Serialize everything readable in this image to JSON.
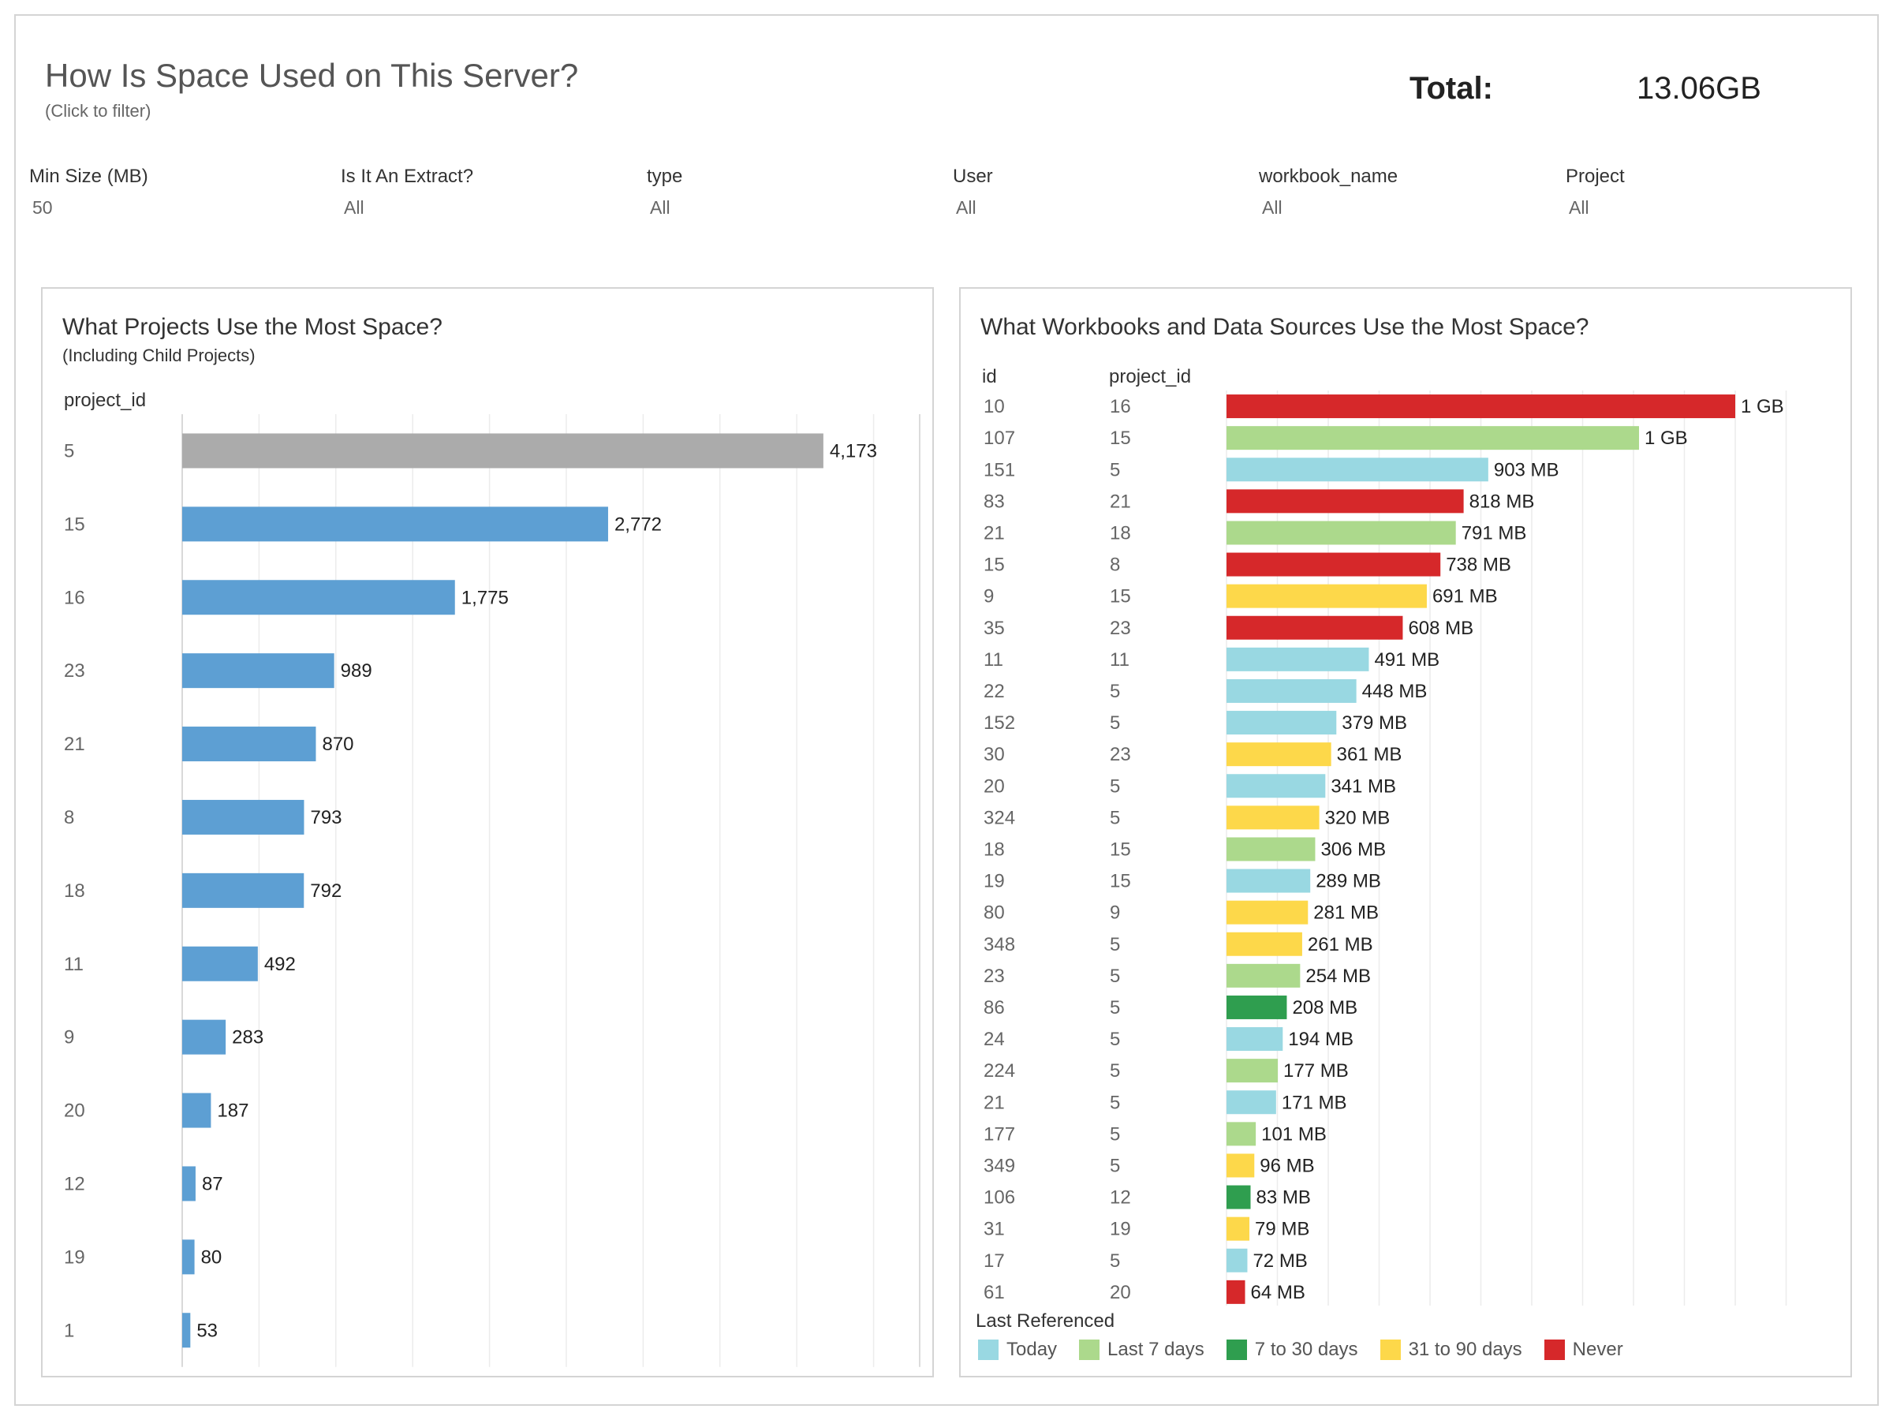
{
  "header": {
    "title": "How Is Space Used on This Server?",
    "subtitle": "(Click to filter)",
    "total_label": "Total:",
    "total_value": "13.06GB"
  },
  "filters": [
    {
      "label": "Min Size (MB)",
      "value": "50"
    },
    {
      "label": "Is It An Extract?",
      "value": "All"
    },
    {
      "label": "type",
      "value": "All"
    },
    {
      "label": "User",
      "value": "All"
    },
    {
      "label": "workbook_name",
      "value": "All"
    },
    {
      "label": "Project",
      "value": "All"
    }
  ],
  "chart_data": [
    {
      "type": "bar",
      "orientation": "horizontal",
      "title": "What Projects Use the Most Space?",
      "subtitle": "(Including Child Projects)",
      "row_header": "project_id",
      "categories": [
        "5",
        "15",
        "16",
        "23",
        "21",
        "8",
        "18",
        "11",
        "9",
        "20",
        "12",
        "19",
        "1"
      ],
      "values": [
        4173,
        2772,
        1775,
        989,
        870,
        793,
        792,
        492,
        283,
        187,
        87,
        80,
        53
      ],
      "labels": [
        "4,173",
        "2,772",
        "1,775",
        "989",
        "870",
        "793",
        "792",
        "492",
        "283",
        "187",
        "87",
        "80",
        "53"
      ],
      "bar_colors": [
        "#ababab",
        "#5d9fd3",
        "#5d9fd3",
        "#5d9fd3",
        "#5d9fd3",
        "#5d9fd3",
        "#5d9fd3",
        "#5d9fd3",
        "#5d9fd3",
        "#5d9fd3",
        "#5d9fd3",
        "#5d9fd3",
        "#5d9fd3"
      ],
      "xlim": [
        0,
        4800
      ],
      "grid": true
    },
    {
      "type": "bar",
      "orientation": "horizontal",
      "title": "What Workbooks and Data Sources Use the Most Space?",
      "row_headers": [
        "id",
        "project_id"
      ],
      "rows": [
        {
          "id": "10",
          "project_id": "16",
          "value": 1000,
          "label": "1 GB",
          "referenced": "Never"
        },
        {
          "id": "107",
          "project_id": "15",
          "value": 1000,
          "label": "1 GB",
          "referenced": "Last 7 days"
        },
        {
          "id": "151",
          "project_id": "5",
          "value": 903,
          "label": "903 MB",
          "referenced": "Today"
        },
        {
          "id": "83",
          "project_id": "21",
          "value": 818,
          "label": "818 MB",
          "referenced": "Never"
        },
        {
          "id": "21",
          "project_id": "18",
          "value": 791,
          "label": "791 MB",
          "referenced": "Last 7 days"
        },
        {
          "id": "15",
          "project_id": "8",
          "value": 738,
          "label": "738 MB",
          "referenced": "Never"
        },
        {
          "id": "9",
          "project_id": "15",
          "value": 691,
          "label": "691 MB",
          "referenced": "31 to 90 days"
        },
        {
          "id": "35",
          "project_id": "23",
          "value": 608,
          "label": "608 MB",
          "referenced": "Never"
        },
        {
          "id": "11",
          "project_id": "11",
          "value": 491,
          "label": "491 MB",
          "referenced": "Today"
        },
        {
          "id": "22",
          "project_id": "5",
          "value": 448,
          "label": "448 MB",
          "referenced": "Today"
        },
        {
          "id": "152",
          "project_id": "5",
          "value": 379,
          "label": "379 MB",
          "referenced": "Today"
        },
        {
          "id": "30",
          "project_id": "23",
          "value": 361,
          "label": "361 MB",
          "referenced": "31 to 90 days"
        },
        {
          "id": "20",
          "project_id": "5",
          "value": 341,
          "label": "341 MB",
          "referenced": "Today"
        },
        {
          "id": "324",
          "project_id": "5",
          "value": 320,
          "label": "320 MB",
          "referenced": "31 to 90 days"
        },
        {
          "id": "18",
          "project_id": "15",
          "value": 306,
          "label": "306 MB",
          "referenced": "Last 7 days"
        },
        {
          "id": "19",
          "project_id": "15",
          "value": 289,
          "label": "289 MB",
          "referenced": "Today"
        },
        {
          "id": "80",
          "project_id": "9",
          "value": 281,
          "label": "281 MB",
          "referenced": "31 to 90 days"
        },
        {
          "id": "348",
          "project_id": "5",
          "value": 261,
          "label": "261 MB",
          "referenced": "31 to 90 days"
        },
        {
          "id": "23",
          "project_id": "5",
          "value": 254,
          "label": "254 MB",
          "referenced": "Last 7 days"
        },
        {
          "id": "86",
          "project_id": "5",
          "value": 208,
          "label": "208 MB",
          "referenced": "7 to 30 days"
        },
        {
          "id": "24",
          "project_id": "5",
          "value": 194,
          "label": "194 MB",
          "referenced": "Today"
        },
        {
          "id": "224",
          "project_id": "5",
          "value": 177,
          "label": "177 MB",
          "referenced": "Last 7 days"
        },
        {
          "id": "21",
          "project_id": "5",
          "value": 171,
          "label": "171 MB",
          "referenced": "Today"
        },
        {
          "id": "177",
          "project_id": "5",
          "value": 101,
          "label": "101 MB",
          "referenced": "Last 7 days"
        },
        {
          "id": "349",
          "project_id": "5",
          "value": 96,
          "label": "96 MB",
          "referenced": "31 to 90 days"
        },
        {
          "id": "106",
          "project_id": "12",
          "value": 83,
          "label": "83 MB",
          "referenced": "7 to 30 days"
        },
        {
          "id": "31",
          "project_id": "19",
          "value": 79,
          "label": "79 MB",
          "referenced": "31 to 90 days"
        },
        {
          "id": "17",
          "project_id": "5",
          "value": 72,
          "label": "72 MB",
          "referenced": "Today"
        },
        {
          "id": "61",
          "project_id": "20",
          "value": 64,
          "label": "64 MB",
          "referenced": "Never"
        }
      ],
      "xlim": [
        0,
        1170
      ],
      "grid": true,
      "legend": {
        "title": "Last Referenced",
        "placement": "bottom",
        "items": [
          {
            "name": "Today",
            "color": "#99d8e2"
          },
          {
            "name": "Last 7 days",
            "color": "#acd98c"
          },
          {
            "name": "7 to 30 days",
            "color": "#2f9e4f"
          },
          {
            "name": "31 to 90 days",
            "color": "#fdd84a"
          },
          {
            "name": "Never",
            "color": "#d6282a"
          }
        ]
      }
    }
  ]
}
